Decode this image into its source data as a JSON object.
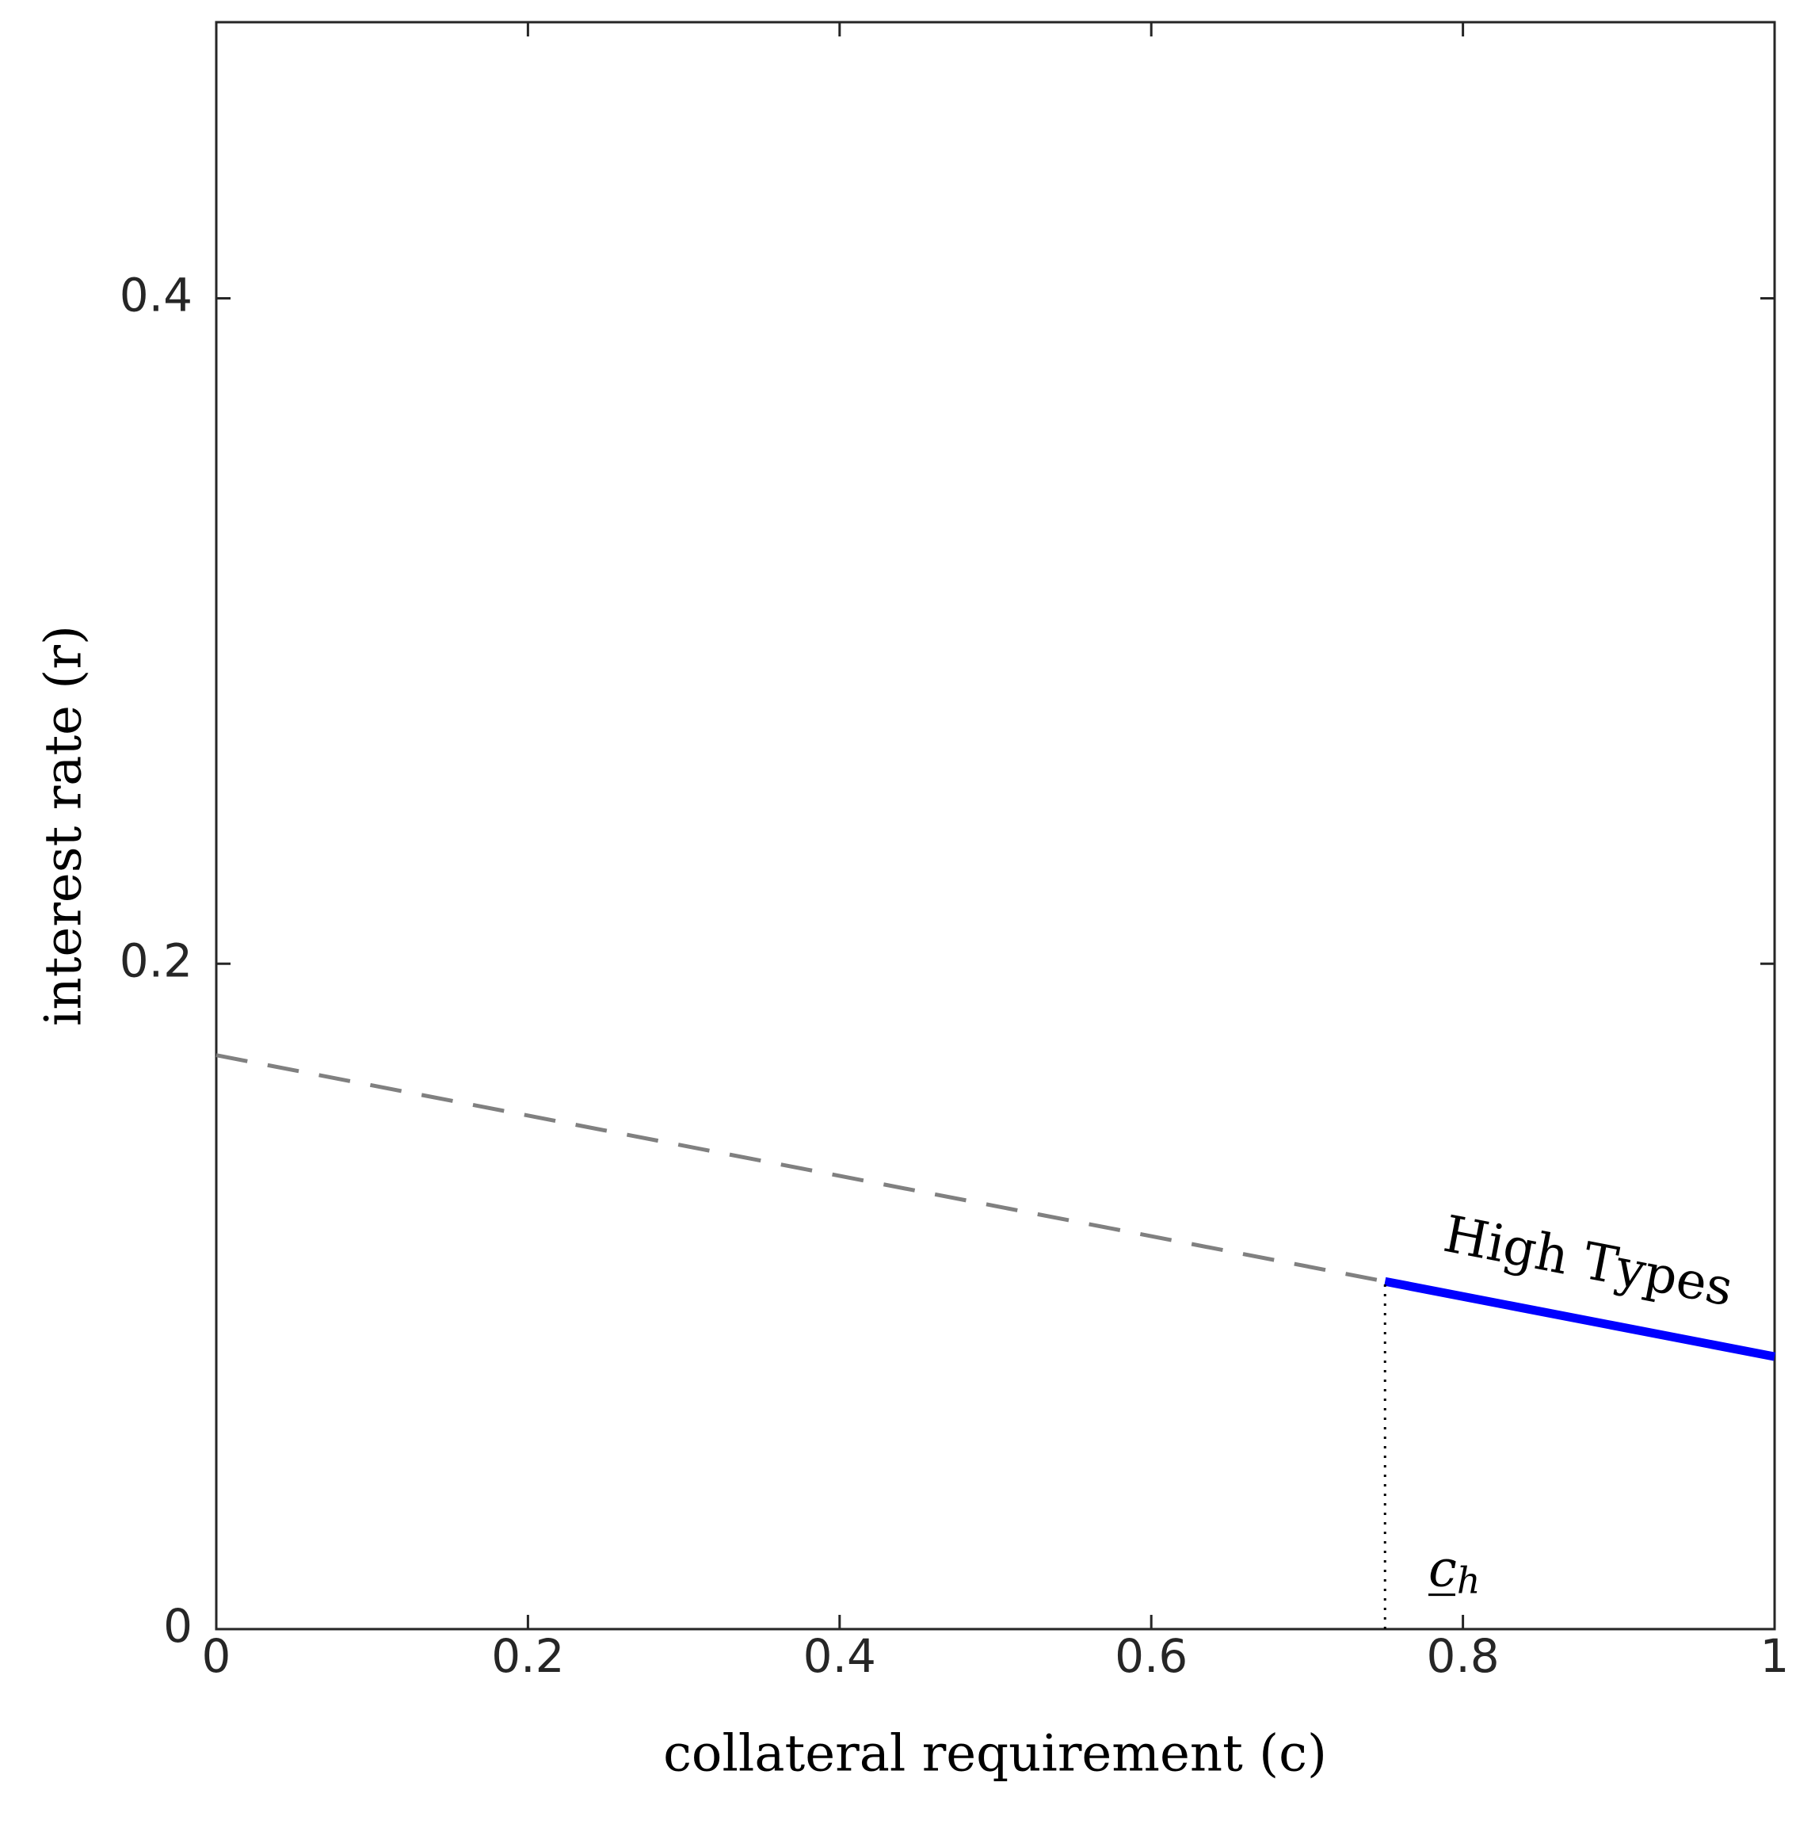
{
  "chart_data": {
    "type": "line",
    "x_label": "collateral requirement (c)",
    "y_label": "interest rate (r)",
    "xlim": [
      0,
      1
    ],
    "ylim": [
      0,
      0.483
    ],
    "xticks": [
      0,
      0.2,
      0.4,
      0.6,
      0.8,
      1
    ],
    "yticks": [
      0,
      0.2,
      0.4
    ],
    "series": [
      {
        "color": "#808080",
        "style": "dashed",
        "x": [
          0,
          0.75
        ],
        "values": [
          0.1725,
          0.1045
        ]
      },
      {
        "color": "#0000ff",
        "style": "solid",
        "x": [
          0.75,
          1
        ],
        "values": [
          0.1045,
          0.0819
        ]
      },
      {
        "color": "#000000",
        "style": "dotted",
        "x": [
          0.75,
          0.75
        ],
        "values": [
          0,
          0.1045
        ]
      }
    ],
    "annotations": [
      {
        "text": "High Types",
        "x": 0.88,
        "y": 0.1094
      },
      {
        "text": "c",
        "subscript": "h",
        "x": 0.788,
        "y": 0.017
      }
    ]
  }
}
